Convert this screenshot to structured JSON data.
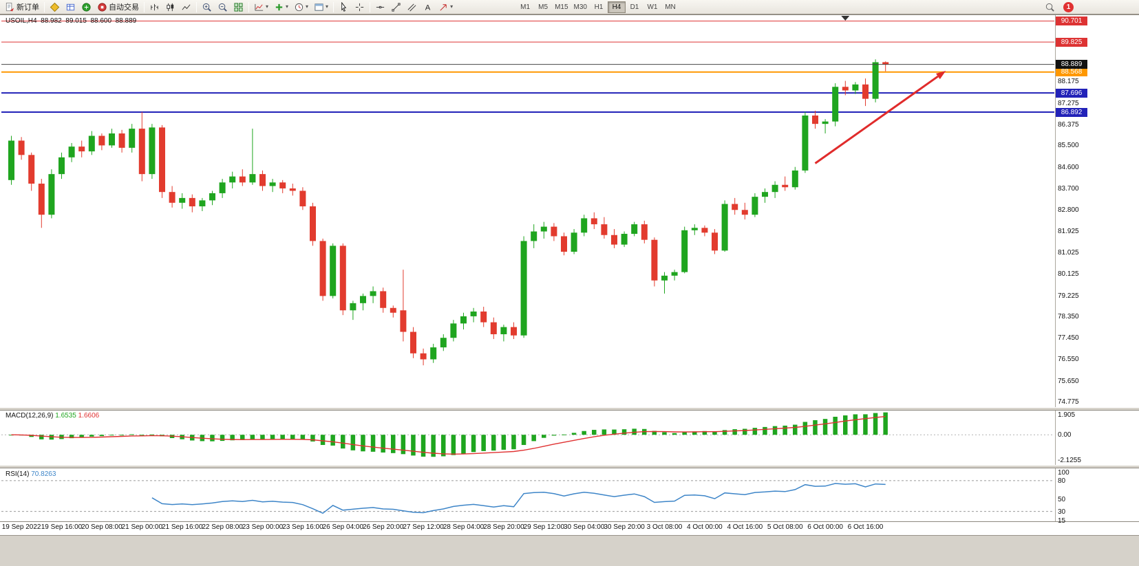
{
  "toolbar": {
    "new_order_label": "新订单",
    "auto_trading_label": "自动交易",
    "timeframes": [
      "M1",
      "M5",
      "M15",
      "M30",
      "H1",
      "H4",
      "D1",
      "W1",
      "MN"
    ],
    "active_timeframe": "H4",
    "notification_badge": "1"
  },
  "chart_data": {
    "type": "candlestick",
    "title": "USOIL,H4",
    "header": {
      "symbol": "USOIL,H4",
      "open": "88.982",
      "high": "89.015",
      "low": "88.600",
      "close": "88.889"
    },
    "ylim": [
      74.55,
      90.95
    ],
    "price_axis_labels": [
      "88.175",
      "87.275",
      "86.375",
      "85.500",
      "84.600",
      "83.700",
      "82.800",
      "81.925",
      "81.025",
      "80.125",
      "79.225",
      "78.350",
      "77.450",
      "76.550",
      "75.650",
      "74.775"
    ],
    "time_labels": [
      "19 Sep 2022",
      "19 Sep 16:00",
      "20 Sep 08:00",
      "21 Sep 00:00",
      "21 Sep 16:00",
      "22 Sep 08:00",
      "23 Sep 00:00",
      "23 Sep 16:00",
      "26 Sep 04:00",
      "26 Sep 20:00",
      "27 Sep 12:00",
      "28 Sep 04:00",
      "28 Sep 20:00",
      "29 Sep 12:00",
      "30 Sep 04:00",
      "30 Sep 20:00",
      "3 Oct 08:00",
      "4 Oct 00:00",
      "4 Oct 16:00",
      "5 Oct 08:00",
      "6 Oct 00:00",
      "6 Oct 16:00"
    ],
    "colors": {
      "up": "#1fa51f",
      "down": "#e23b2e",
      "rsi_line": "#3d85c8",
      "macd_hist": "#1fa51f",
      "macd_signal": "#e03131"
    },
    "hlines": [
      {
        "name": "resistance-line-1",
        "price": 90.701,
        "label": "90.701",
        "color": "#dd3333",
        "thickness": 1
      },
      {
        "name": "resistance-line-2",
        "price": 89.825,
        "label": "89.825",
        "color": "#dd3333",
        "thickness": 1
      },
      {
        "name": "pivot-line",
        "price": 88.568,
        "label": "88.568",
        "color": "#ff9800",
        "thickness": 2
      },
      {
        "name": "support-line-1",
        "price": 87.696,
        "label": "87.696",
        "color": "#2222b8",
        "thickness": 2
      },
      {
        "name": "support-line-2",
        "price": 86.892,
        "label": "86.892",
        "color": "#2222b8",
        "thickness": 2
      }
    ],
    "current_price": {
      "price": 88.889,
      "label": "88.889",
      "line_color": "#444444",
      "badge_color": "#111111"
    },
    "trend_arrow": {
      "from_candle": 80,
      "from_price": 84.75,
      "to_candle": 93,
      "to_price": 88.62,
      "color": "#e02b2b"
    },
    "shift_marker_candle": 83,
    "ohlc": [
      [
        84.05,
        85.9,
        83.85,
        85.7
      ],
      [
        85.7,
        85.85,
        84.9,
        85.1
      ],
      [
        85.1,
        85.2,
        83.6,
        83.9
      ],
      [
        83.9,
        84.1,
        82.05,
        82.6
      ],
      [
        82.6,
        84.5,
        82.45,
        84.3
      ],
      [
        84.3,
        85.2,
        84.1,
        85.0
      ],
      [
        85.0,
        85.6,
        84.8,
        85.45
      ],
      [
        85.45,
        85.7,
        85.0,
        85.25
      ],
      [
        85.25,
        86.1,
        85.1,
        85.9
      ],
      [
        85.9,
        86.0,
        85.3,
        85.5
      ],
      [
        85.5,
        86.2,
        85.4,
        86.0
      ],
      [
        86.0,
        86.15,
        85.2,
        85.4
      ],
      [
        85.4,
        86.4,
        85.2,
        86.2
      ],
      [
        86.2,
        86.9,
        84.0,
        84.3
      ],
      [
        84.3,
        86.4,
        84.1,
        86.25
      ],
      [
        86.25,
        86.35,
        83.3,
        83.55
      ],
      [
        83.55,
        83.8,
        82.9,
        83.1
      ],
      [
        83.1,
        83.5,
        82.85,
        83.3
      ],
      [
        83.3,
        83.45,
        82.7,
        82.95
      ],
      [
        82.95,
        83.3,
        82.75,
        83.2
      ],
      [
        83.2,
        83.6,
        83.0,
        83.5
      ],
      [
        83.5,
        84.1,
        83.3,
        83.95
      ],
      [
        83.95,
        84.4,
        83.7,
        84.2
      ],
      [
        84.2,
        84.5,
        83.8,
        83.95
      ],
      [
        83.95,
        86.2,
        83.85,
        84.3
      ],
      [
        84.3,
        84.45,
        83.6,
        83.8
      ],
      [
        83.8,
        84.1,
        83.55,
        83.95
      ],
      [
        83.95,
        84.05,
        83.5,
        83.7
      ],
      [
        83.7,
        83.9,
        83.4,
        83.6
      ],
      [
        83.6,
        83.75,
        82.8,
        82.95
      ],
      [
        82.95,
        83.1,
        81.3,
        81.5
      ],
      [
        81.5,
        81.6,
        79.0,
        79.2
      ],
      [
        79.2,
        81.4,
        79.1,
        81.3
      ],
      [
        81.3,
        81.4,
        78.4,
        78.6
      ],
      [
        78.6,
        79.0,
        78.2,
        78.9
      ],
      [
        78.9,
        79.3,
        78.6,
        79.2
      ],
      [
        79.2,
        79.6,
        78.9,
        79.4
      ],
      [
        79.4,
        79.55,
        78.5,
        78.7
      ],
      [
        78.7,
        78.8,
        78.3,
        78.5
      ],
      [
        78.6,
        80.3,
        77.3,
        77.7
      ],
      [
        77.7,
        77.9,
        76.6,
        76.8
      ],
      [
        76.8,
        77.0,
        76.3,
        76.55
      ],
      [
        76.55,
        77.2,
        76.4,
        77.05
      ],
      [
        77.05,
        77.6,
        76.9,
        77.45
      ],
      [
        77.45,
        78.2,
        77.3,
        78.05
      ],
      [
        78.05,
        78.5,
        77.8,
        78.35
      ],
      [
        78.35,
        78.7,
        78.1,
        78.55
      ],
      [
        78.55,
        78.75,
        77.9,
        78.1
      ],
      [
        78.1,
        78.3,
        77.4,
        77.6
      ],
      [
        77.6,
        78.0,
        77.3,
        77.9
      ],
      [
        77.9,
        78.1,
        77.4,
        77.55
      ],
      [
        77.55,
        81.7,
        77.45,
        81.5
      ],
      [
        81.5,
        82.2,
        81.2,
        81.9
      ],
      [
        81.9,
        82.3,
        81.6,
        82.1
      ],
      [
        82.1,
        82.25,
        81.5,
        81.7
      ],
      [
        81.7,
        81.85,
        80.9,
        81.05
      ],
      [
        81.05,
        82.0,
        80.95,
        81.85
      ],
      [
        81.85,
        82.6,
        81.7,
        82.45
      ],
      [
        82.45,
        82.7,
        82.0,
        82.2
      ],
      [
        82.2,
        82.5,
        81.6,
        81.75
      ],
      [
        81.75,
        82.0,
        81.2,
        81.35
      ],
      [
        81.35,
        81.9,
        81.25,
        81.8
      ],
      [
        81.8,
        82.3,
        81.7,
        82.2
      ],
      [
        82.2,
        82.35,
        81.4,
        81.55
      ],
      [
        81.55,
        81.65,
        79.6,
        79.85
      ],
      [
        79.85,
        80.2,
        79.3,
        80.05
      ],
      [
        80.05,
        80.3,
        79.85,
        80.2
      ],
      [
        80.2,
        82.1,
        80.15,
        81.95
      ],
      [
        81.95,
        82.2,
        81.75,
        82.05
      ],
      [
        82.05,
        82.15,
        81.7,
        81.85
      ],
      [
        81.85,
        82.0,
        80.95,
        81.1
      ],
      [
        81.1,
        83.2,
        81.05,
        83.05
      ],
      [
        83.05,
        83.3,
        82.6,
        82.8
      ],
      [
        82.8,
        83.1,
        82.4,
        82.6
      ],
      [
        82.6,
        83.5,
        82.5,
        83.35
      ],
      [
        83.35,
        83.7,
        83.1,
        83.55
      ],
      [
        83.55,
        84.0,
        83.3,
        83.85
      ],
      [
        83.85,
        84.2,
        83.6,
        83.75
      ],
      [
        83.75,
        84.6,
        83.65,
        84.45
      ],
      [
        84.45,
        86.9,
        84.35,
        86.75
      ],
      [
        86.75,
        86.95,
        86.2,
        86.4
      ],
      [
        86.4,
        86.6,
        86.0,
        86.5
      ],
      [
        86.5,
        88.1,
        86.3,
        87.95
      ],
      [
        87.95,
        88.2,
        87.6,
        87.8
      ],
      [
        87.8,
        88.15,
        87.65,
        88.05
      ],
      [
        88.05,
        88.3,
        87.15,
        87.45
      ],
      [
        87.45,
        89.1,
        87.3,
        88.98
      ],
      [
        88.982,
        89.015,
        88.6,
        88.889
      ]
    ]
  },
  "macd": {
    "title": "MACD(12,26,9)",
    "value_main": "1.6535",
    "value_signal": "1.6606",
    "fast": 12,
    "slow": 26,
    "signal": 9,
    "scale_labels": [
      "1.905",
      "0.00",
      "-2.1255"
    ],
    "scale_values": [
      1.905,
      0,
      -2.1255
    ],
    "ylim": [
      -2.55,
      2.05
    ]
  },
  "rsi": {
    "title": "RSI(14)",
    "value": "70.8263",
    "period": 14,
    "scale_labels": [
      "100",
      "80",
      "50",
      "30",
      "15"
    ],
    "scale_values": [
      100,
      80,
      50,
      30,
      15
    ],
    "levels": [
      80,
      30
    ],
    "ylim": [
      15,
      100
    ]
  }
}
